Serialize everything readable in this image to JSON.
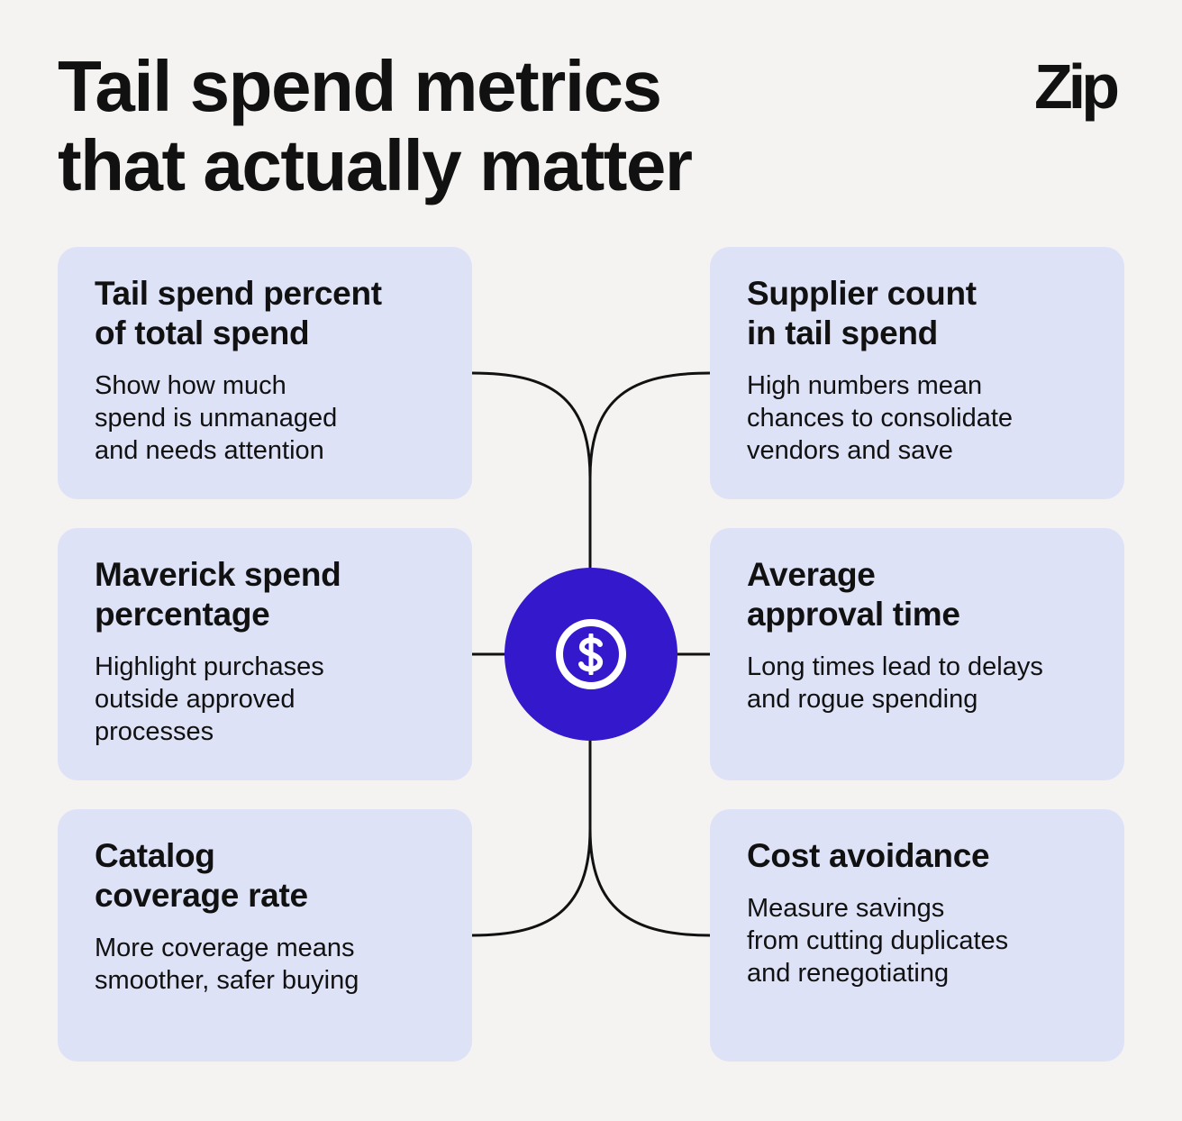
{
  "title": {
    "line1": "Tail spend metrics",
    "line2": "that actually matter"
  },
  "logo": "Zip",
  "center_icon": "dollar-coin-icon",
  "colors": {
    "background": "#f4f3f1",
    "card": "#dee2f7",
    "hub": "#3418cc",
    "text": "#111111",
    "lines": "#111111"
  },
  "metrics": [
    {
      "title": [
        "Tail spend percent",
        "of total spend"
      ],
      "description": [
        "Show how much",
        "spend is unmanaged",
        "and needs attention"
      ]
    },
    {
      "title": [
        "Supplier count",
        "in tail spend"
      ],
      "description": [
        "High numbers mean",
        "chances to consolidate",
        "vendors and save"
      ]
    },
    {
      "title": [
        "Maverick spend",
        "percentage"
      ],
      "description": [
        "Highlight purchases",
        "outside approved",
        "processes"
      ]
    },
    {
      "title": [
        "Average",
        "approval time"
      ],
      "description": [
        "Long times lead to delays",
        "and rogue spending"
      ]
    },
    {
      "title": [
        "Catalog",
        "coverage rate"
      ],
      "description": [
        "More coverage means",
        "smoother, safer buying"
      ]
    },
    {
      "title": [
        "Cost avoidance"
      ],
      "description": [
        "Measure savings",
        "from cutting duplicates",
        "and renegotiating"
      ]
    }
  ]
}
